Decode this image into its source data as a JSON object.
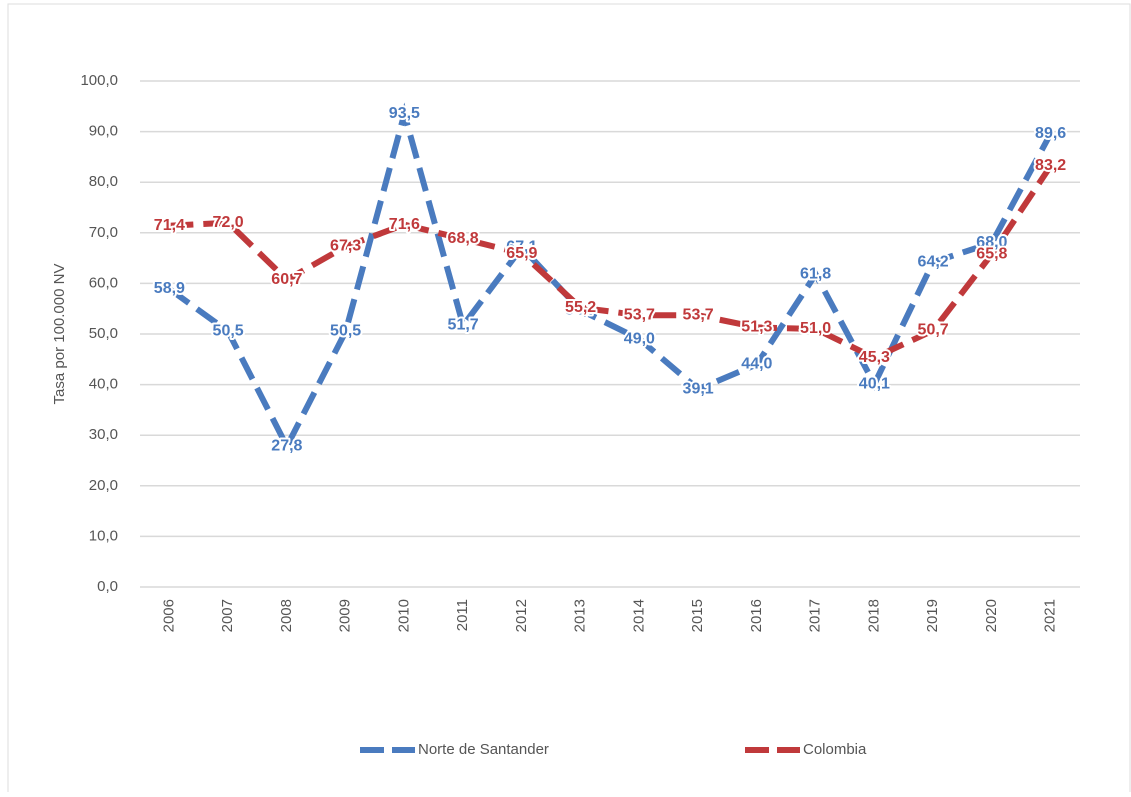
{
  "chart_data": {
    "type": "line",
    "y_label": "Tasa por 100.000 NV",
    "categories": [
      "2006",
      "2007",
      "2008",
      "2009",
      "2010",
      "2011",
      "2012",
      "2013",
      "2014",
      "2015",
      "2016",
      "2017",
      "2018",
      "2019",
      "2020",
      "2021"
    ],
    "series": [
      {
        "name": "Norte de Santander",
        "color": "#4a7bbf",
        "values": [
          58.9,
          50.5,
          27.8,
          50.5,
          93.5,
          51.7,
          67.1,
          54.7,
          49.0,
          39.1,
          44.0,
          61.8,
          40.1,
          64.2,
          68.0,
          89.6
        ],
        "value_labels": [
          "58,9",
          "50,5",
          "27,8",
          "50,5",
          "93,5",
          "51,7",
          "67,1",
          "54,7",
          "49,0",
          "39,1",
          "44,0",
          "61,8",
          "40,1",
          "64,2",
          "68,0",
          "89,6"
        ]
      },
      {
        "name": "Colombia",
        "color": "#c0393b",
        "values": [
          71.4,
          72.0,
          60.7,
          67.3,
          71.6,
          68.8,
          65.9,
          55.2,
          53.7,
          53.7,
          51.3,
          51.0,
          45.3,
          50.7,
          65.8,
          83.2
        ],
        "value_labels": [
          "71,4",
          "72,0",
          "60,7",
          "67,3",
          "71,6",
          "68,8",
          "65,9",
          "55,2",
          "53,7",
          "53,7",
          "51,3",
          "51,0",
          "45,3",
          "50,7",
          "65,8",
          "83,2"
        ]
      }
    ],
    "ylim": [
      0,
      100
    ],
    "yticks": [
      {
        "value": 0,
        "label": "0,0"
      },
      {
        "value": 10,
        "label": "10,0"
      },
      {
        "value": 20,
        "label": "20,0"
      },
      {
        "value": 30,
        "label": "30,0"
      },
      {
        "value": 40,
        "label": "40,0"
      },
      {
        "value": 50,
        "label": "50,0"
      },
      {
        "value": 60,
        "label": "60,0"
      },
      {
        "value": 70,
        "label": "70,0"
      },
      {
        "value": 80,
        "label": "80,0"
      },
      {
        "value": 90,
        "label": "90,0"
      },
      {
        "value": 100,
        "label": "100,0"
      }
    ],
    "grid": true,
    "legend": "bottom"
  }
}
